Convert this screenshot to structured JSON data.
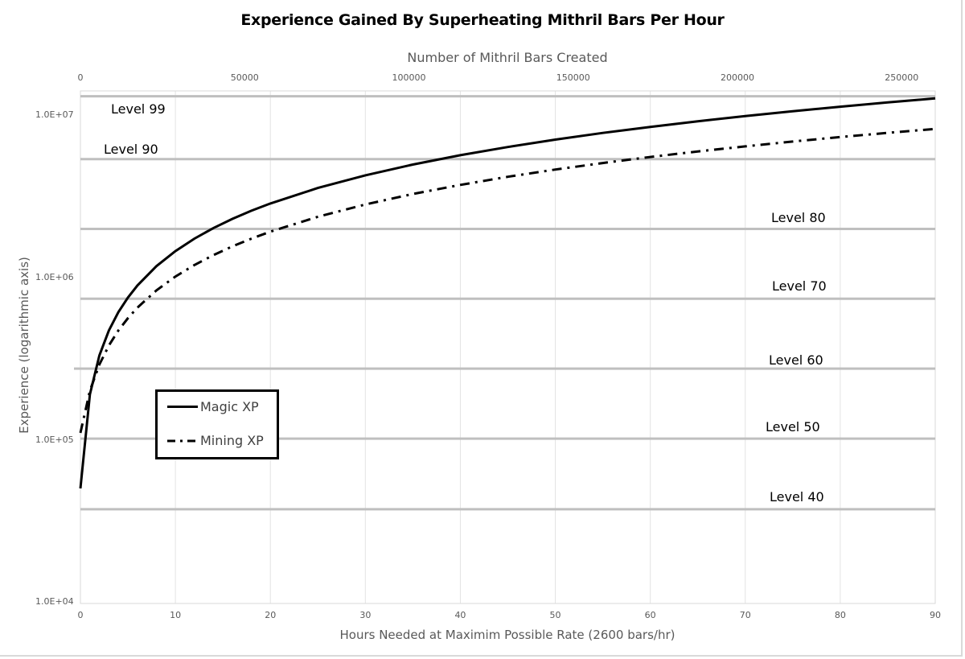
{
  "chart_data": {
    "type": "line",
    "title": "Experience Gained By Superheating Mithril Bars Per Hour",
    "xlabel": "Hours Needed at Maximim Possible Rate (2600 bars/hr)",
    "x2label": "Number of Mithril Bars Created",
    "ylabel": "Experience (logarithmic axis)",
    "yscale": "log",
    "ylim": [
      10000,
      13500000
    ],
    "xlim": [
      0,
      90
    ],
    "x2lim": [
      0,
      260000
    ],
    "x_ticks": [
      "0",
      "10",
      "20",
      "30",
      "40",
      "50",
      "60",
      "70",
      "80",
      "90"
    ],
    "x2_ticks": [
      "0",
      "50000",
      "100000",
      "150000",
      "200000",
      "250000"
    ],
    "y_ticks": [
      "1.0E+04",
      "1.0E+05",
      "1.0E+06",
      "1.0E+07"
    ],
    "grid": true,
    "legend_position": "inside-left",
    "x": [
      0,
      1,
      2,
      3,
      4,
      5,
      6,
      8,
      10,
      12,
      14,
      16,
      18,
      20,
      25,
      30,
      35,
      40,
      45,
      50,
      55,
      60,
      65,
      70,
      75,
      80,
      85,
      90
    ],
    "series": [
      {
        "name": "Magic XP",
        "style": "solid",
        "values": [
          50000,
          190000,
          330000,
          470000,
          610000,
          750000,
          890000,
          1170000,
          1450000,
          1730000,
          2010000,
          2290000,
          2570000,
          2850000,
          3550000,
          4250000,
          4950000,
          5650000,
          6350000,
          7050000,
          7750000,
          8450000,
          9150000,
          9850000,
          10550000,
          11250000,
          11950000,
          12650000
        ]
      },
      {
        "name": "Mining XP",
        "style": "dash-dot",
        "values": [
          110000,
          200000,
          290000,
          380000,
          470000,
          560000,
          650000,
          830000,
          1010000,
          1190000,
          1370000,
          1550000,
          1730000,
          1910000,
          2360000,
          2810000,
          3260000,
          3710000,
          4160000,
          4610000,
          5060000,
          5510000,
          5960000,
          6410000,
          6860000,
          7310000,
          7760000,
          8210000
        ]
      }
    ],
    "reference_lines": [
      {
        "label": "Level 99",
        "xp": 13034431
      },
      {
        "label": "Level 90",
        "xp": 5346332
      },
      {
        "label": "Level 80",
        "xp": 1986068
      },
      {
        "label": "Level 70",
        "xp": 737627
      },
      {
        "label": "Level 60",
        "xp": 273742
      },
      {
        "label": "Level 50",
        "xp": 101333
      },
      {
        "label": "Level 40",
        "xp": 37224
      }
    ]
  },
  "ui": {
    "title": "Experience Gained By Superheating Mithril Bars Per Hour",
    "x_title": "Hours Needed at Maximim Possible Rate (2600 bars/hr)",
    "x2_title": "Number of Mithril Bars Created",
    "y_title": "Experience (logarithmic axis)",
    "legend": {
      "magic": "Magic XP",
      "mining": "Mining XP"
    },
    "levels": {
      "l99": "Level 99",
      "l90": "Level 90",
      "l80": "Level 80",
      "l70": "Level 70",
      "l60": "Level 60",
      "l50": "Level 50",
      "l40": "Level 40"
    },
    "y_ticks": {
      "e7": "1.0E+07",
      "e6": "1.0E+06",
      "e5": "1.0E+05",
      "e4": "1.0E+04"
    },
    "x_ticks": [
      "0",
      "10",
      "20",
      "30",
      "40",
      "50",
      "60",
      "70",
      "80",
      "90"
    ],
    "x2_ticks": [
      "0",
      "50000",
      "100000",
      "150000",
      "200000",
      "250000"
    ]
  }
}
